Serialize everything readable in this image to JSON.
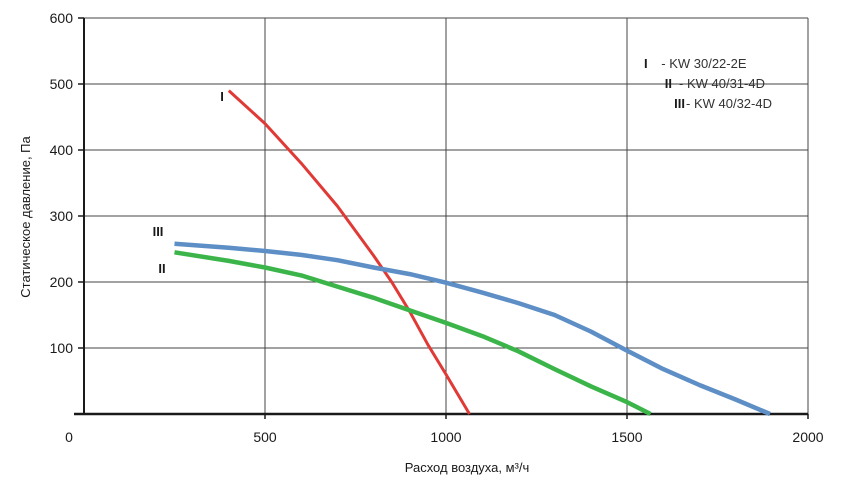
{
  "chart_data": {
    "type": "line",
    "title": "",
    "xlabel": "Расход воздуха, м³/ч",
    "ylabel": "Статическое давление, Па",
    "xlim": [
      0,
      2000
    ],
    "ylim": [
      0,
      600
    ],
    "x_ticks": [
      "0",
      "500",
      "1000",
      "1500",
      "2000"
    ],
    "y_ticks": [
      "100",
      "200",
      "300",
      "400",
      "500",
      "600"
    ],
    "grid": true,
    "legend_position": "top-right",
    "legend": [
      {
        "id": "I",
        "text": "- KW 30/22-2E"
      },
      {
        "id": "II",
        "text": "- KW 40/31-4D"
      },
      {
        "id": "III",
        "text": "- KW 40/32-4D"
      }
    ],
    "series": [
      {
        "name": "I",
        "color": "#e03a36",
        "points": [
          [
            400,
            490
          ],
          [
            500,
            440
          ],
          [
            600,
            380
          ],
          [
            700,
            315
          ],
          [
            800,
            240
          ],
          [
            850,
            200
          ],
          [
            900,
            155
          ],
          [
            950,
            105
          ],
          [
            1000,
            60
          ],
          [
            1065,
            0
          ]
        ]
      },
      {
        "name": "II",
        "color": "#3bb54a",
        "points": [
          [
            250,
            245
          ],
          [
            400,
            232
          ],
          [
            500,
            222
          ],
          [
            600,
            210
          ],
          [
            700,
            193
          ],
          [
            800,
            176
          ],
          [
            900,
            157
          ],
          [
            1000,
            138
          ],
          [
            1100,
            118
          ],
          [
            1200,
            95
          ],
          [
            1300,
            68
          ],
          [
            1400,
            42
          ],
          [
            1500,
            18
          ],
          [
            1565,
            0
          ]
        ]
      },
      {
        "name": "III",
        "color": "#5d8fc6",
        "points": [
          [
            250,
            258
          ],
          [
            400,
            252
          ],
          [
            500,
            247
          ],
          [
            600,
            241
          ],
          [
            700,
            233
          ],
          [
            800,
            222
          ],
          [
            900,
            212
          ],
          [
            1000,
            199
          ],
          [
            1100,
            184
          ],
          [
            1200,
            168
          ],
          [
            1300,
            150
          ],
          [
            1400,
            125
          ],
          [
            1500,
            96
          ],
          [
            1600,
            68
          ],
          [
            1700,
            44
          ],
          [
            1800,
            22
          ],
          [
            1895,
            0
          ]
        ]
      }
    ]
  }
}
